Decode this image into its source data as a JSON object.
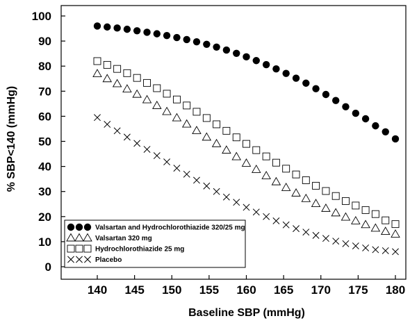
{
  "chart_data": {
    "type": "scatter",
    "title": "",
    "xlabel": "Baseline SBP (mmHg)",
    "ylabel": "% SBP<140 (mmHg)",
    "xlim": [
      140,
      180
    ],
    "ylim": [
      0,
      100
    ],
    "x_ticks": [
      140,
      145,
      150,
      155,
      160,
      165,
      170,
      175,
      180
    ],
    "y_ticks": [
      0,
      10,
      20,
      30,
      40,
      50,
      60,
      70,
      80,
      90,
      100
    ],
    "grid": false,
    "legend_position": "bottom-left",
    "x": [
      140,
      141.33,
      142.67,
      144,
      145.33,
      146.67,
      148,
      149.33,
      150.67,
      152,
      153.33,
      154.67,
      156,
      157.33,
      158.67,
      160,
      161.33,
      162.67,
      164,
      165.33,
      166.67,
      168,
      169.33,
      170.67,
      172,
      173.33,
      174.67,
      176,
      177.33,
      178.67,
      180
    ],
    "series": [
      {
        "name": "Valsartan and Hydrochlorothiazide 320/25 mg",
        "marker": "filled-circle",
        "color": "#000000",
        "values": [
          96.0,
          95.6,
          95.2,
          94.7,
          94.1,
          93.5,
          92.9,
          92.2,
          91.4,
          90.6,
          89.7,
          88.7,
          87.6,
          86.4,
          85.1,
          83.7,
          82.2,
          80.6,
          78.9,
          77.1,
          75.2,
          73.2,
          71.0,
          68.7,
          66.3,
          63.8,
          61.2,
          59.0,
          56.2,
          53.8,
          51.0
        ]
      },
      {
        "name": "Valsartan 320 mg",
        "marker": "open-triangle",
        "color": "#000000",
        "values": [
          77.0,
          75.0,
          73.0,
          70.9,
          68.8,
          66.6,
          64.3,
          61.9,
          59.4,
          56.9,
          54.3,
          51.7,
          49.1,
          46.5,
          43.9,
          41.3,
          38.8,
          36.3,
          33.9,
          31.6,
          29.4,
          27.2,
          25.2,
          23.3,
          21.5,
          19.8,
          18.3,
          16.8,
          15.4,
          14.1,
          13.0
        ]
      },
      {
        "name": "Hydrochlorothiazide 25 mg",
        "marker": "open-square",
        "color": "#000000",
        "values": [
          82.0,
          80.5,
          78.9,
          77.2,
          75.3,
          73.3,
          71.2,
          69.0,
          66.7,
          64.3,
          61.8,
          59.3,
          56.8,
          54.2,
          51.6,
          49.0,
          46.5,
          44.0,
          41.5,
          39.1,
          36.8,
          34.5,
          32.3,
          30.2,
          28.2,
          26.2,
          24.4,
          22.6,
          21.0,
          18.5,
          17.0
        ]
      },
      {
        "name": "Placebo",
        "marker": "x",
        "color": "#000000",
        "values": [
          59.5,
          56.8,
          54.2,
          51.7,
          49.2,
          46.8,
          44.3,
          41.8,
          39.3,
          36.9,
          34.5,
          32.2,
          30.0,
          27.8,
          25.7,
          23.7,
          21.8,
          20.0,
          18.3,
          16.7,
          15.2,
          13.8,
          12.5,
          11.3,
          10.2,
          9.2,
          8.3,
          7.5,
          6.8,
          6.4,
          6.0
        ]
      }
    ]
  }
}
